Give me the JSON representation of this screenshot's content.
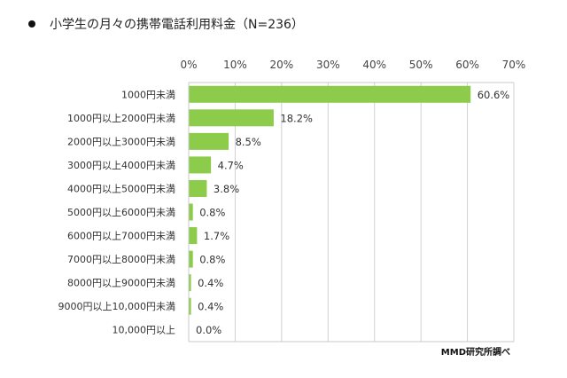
{
  "chart_data": {
    "type": "bar",
    "orientation": "horizontal",
    "title": "小学生の月々の携帯電話利用料金（N=236）",
    "categories": [
      "1000円未満",
      "1000円以上2000円未満",
      "2000円以上3000円未満",
      "3000円以上4000円未満",
      "4000円以上5000円未満",
      "5000円以上6000円未満",
      "6000円以上7000円未満",
      "7000円以上8000円未満",
      "8000円以上9000円未満",
      "9000円以上10,000円未満",
      "10,000円以上"
    ],
    "values": [
      60.6,
      18.2,
      8.5,
      4.7,
      3.8,
      0.8,
      1.7,
      0.8,
      0.4,
      0.4,
      0.0
    ],
    "data_labels": [
      "60.6%",
      "18.2%",
      "8.5%",
      "4.7%",
      "3.8%",
      "0.8%",
      "1.7%",
      "0.8%",
      "0.4%",
      "0.4%",
      "0.0%"
    ],
    "xlim": [
      0,
      70
    ],
    "x_ticks": [
      "0%",
      "10%",
      "20%",
      "30%",
      "40%",
      "50%",
      "60%",
      "70%"
    ],
    "x_axis_position": "top",
    "grid": true,
    "bar_color": "#8DCB4B",
    "source": "MMD研究所調べ"
  }
}
